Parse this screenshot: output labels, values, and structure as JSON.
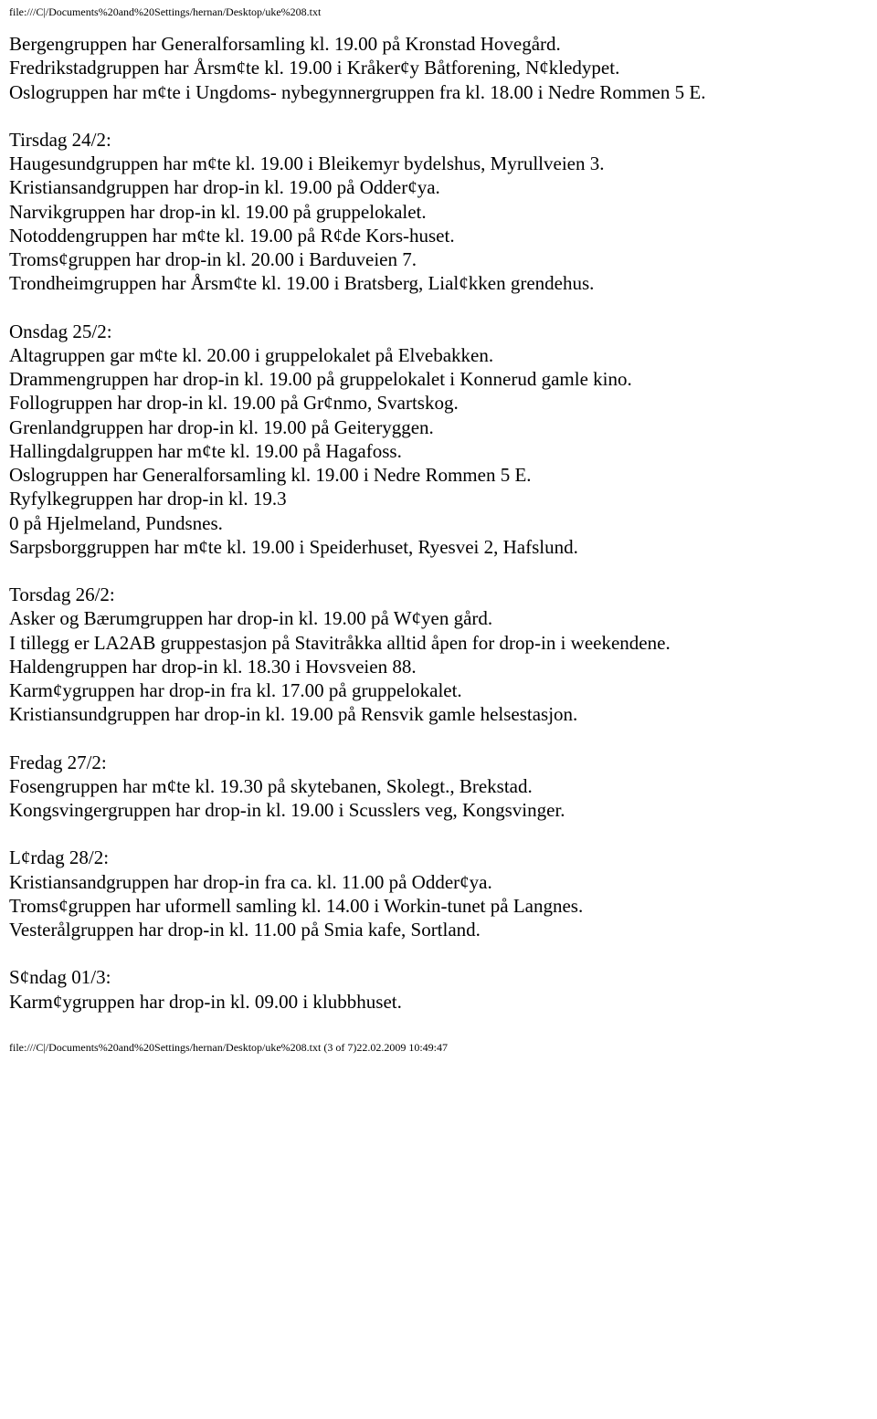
{
  "header": {
    "path": "file:///C|/Documents%20and%20Settings/hernan/Desktop/uke%208.txt"
  },
  "footer": {
    "path": "file:///C|/Documents%20and%20Settings/hernan/Desktop/uke%208.txt (3 of 7)22.02.2009 10:49:47"
  },
  "paragraphs": [
    {
      "lines": [
        "Bergengruppen har Generalforsamling kl. 19.00 på Kronstad Hovegård.",
        "Fredrikstadgruppen har Årsm¢te kl. 19.00 i Kråker¢y Båtforening, N¢kledypet.",
        "Oslogruppen har m¢te i Ungdoms- nybegynnergruppen fra kl. 18.00 i Nedre Rommen 5 E."
      ]
    },
    {
      "lines": [
        "Tirsdag 24/2:",
        "Haugesundgruppen har m¢te kl. 19.00 i Bleikemyr bydelshus, Myrullveien 3.",
        "Kristiansandgruppen har drop-in kl. 19.00 på Odder¢ya.",
        "Narvikgruppen har drop-in kl. 19.00 på gruppelokalet.",
        "Notoddengruppen har m¢te kl. 19.00 på R¢de Kors-huset.",
        "Troms¢gruppen har drop-in kl. 20.00 i Barduveien 7.",
        "Trondheimgruppen har Årsm¢te kl. 19.00 i Bratsberg, Lial¢kken grendehus."
      ]
    },
    {
      "lines": [
        "Onsdag 25/2:",
        "Altagruppen gar m¢te kl. 20.00 i gruppelokalet på Elvebakken.",
        "Drammengruppen har drop-in kl. 19.00 på gruppelokalet i Konnerud gamle kino.",
        "Follogruppen har drop-in kl. 19.00 på Gr¢nmo, Svartskog.",
        "Grenlandgruppen har drop-in kl. 19.00 på Geiteryggen.",
        "Hallingdalgruppen har m¢te kl. 19.00 på Hagafoss.",
        "Oslogruppen har Generalforsamling kl. 19.00 i Nedre Rommen 5 E.",
        "Ryfylkegruppen har drop-in kl. 19.3",
        "0 på Hjelmeland, Pundsnes.",
        "Sarpsborggruppen har m¢te kl. 19.00 i Speiderhuset, Ryesvei 2, Hafslund."
      ]
    },
    {
      "lines": [
        "Torsdag 26/2:",
        "Asker og Bærumgruppen har drop-in kl. 19.00 på W¢yen gård.",
        "I tillegg er LA2AB gruppestasjon på Stavitråkka alltid åpen for drop-in i weekendene.",
        "Haldengruppen har drop-in kl. 18.30 i Hovsveien 88.",
        "Karm¢ygruppen har drop-in fra kl. 17.00 på gruppelokalet.",
        "Kristiansundgruppen har drop-in kl. 19.00 på Rensvik gamle helsestasjon."
      ]
    },
    {
      "lines": [
        "Fredag 27/2:",
        "Fosengruppen har m¢te kl. 19.30 på skytebanen, Skolegt., Brekstad.",
        "Kongsvingergruppen har drop-in kl. 19.00 i Scusslers veg, Kongsvinger."
      ]
    },
    {
      "lines": [
        "L¢rdag 28/2:",
        "Kristiansandgruppen har drop-in fra ca. kl. 11.00 på Odder¢ya.",
        "Troms¢gruppen har uformell samling kl. 14.00 i Workin-tunet på Langnes.",
        "Vesterålgruppen har drop-in kl. 11.00 på Smia kafe, Sortland."
      ]
    },
    {
      "lines": [
        "S¢ndag 01/3:",
        "Karm¢ygruppen har drop-in kl. 09.00 i klubbhuset."
      ]
    }
  ]
}
